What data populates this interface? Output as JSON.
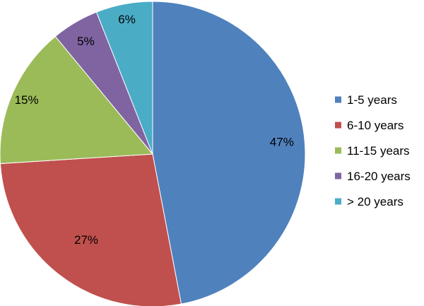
{
  "chart_data": {
    "type": "pie",
    "categories": [
      "1-5 years",
      "6-10 years",
      "11-15 years",
      "16-20 years",
      "> 20 years"
    ],
    "values": [
      47,
      27,
      15,
      5,
      6
    ],
    "labels": [
      "47%",
      "27%",
      "15%",
      "5%",
      "6%"
    ],
    "colors": [
      "#4F81BD",
      "#C0504D",
      "#9BBB59",
      "#8064A2",
      "#4BACC6"
    ],
    "start_angle": "12 o'clock",
    "direction": "clockwise",
    "legend": {
      "position": "right",
      "entries": [
        "1-5 years",
        "6-10 years",
        "11-15 years",
        "16-20 years",
        "> 20 years"
      ]
    }
  }
}
